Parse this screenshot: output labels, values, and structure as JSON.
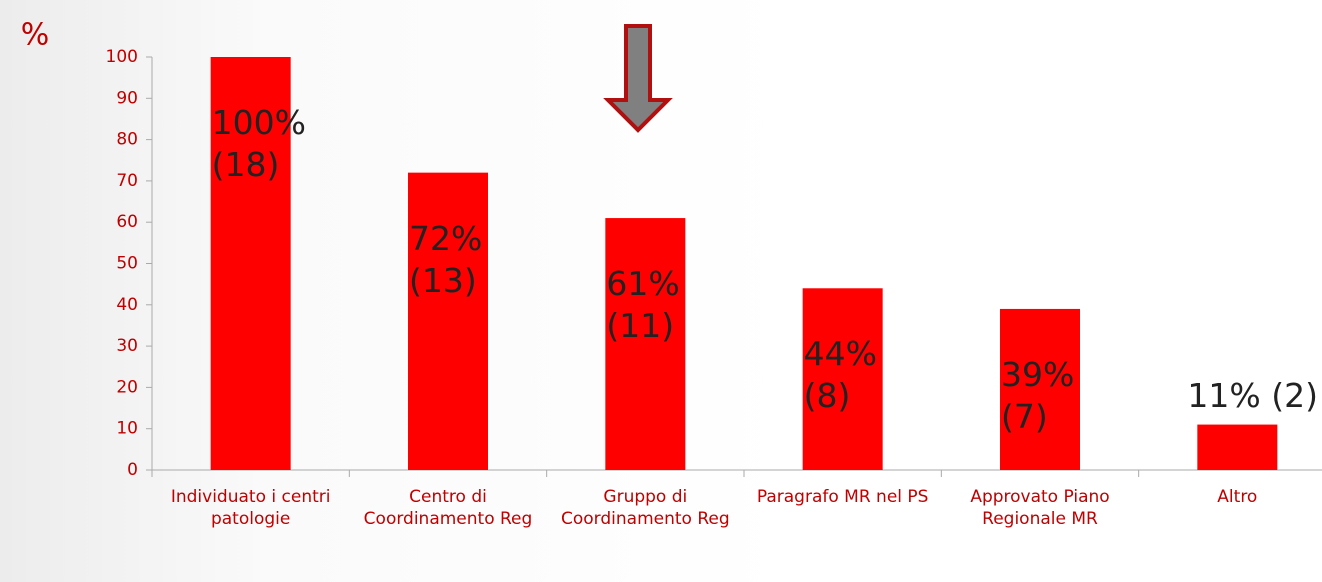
{
  "chart_data": {
    "type": "bar",
    "title": "%",
    "categories": [
      "Individuato i centri patologie",
      "Centro di Coordinamento Reg",
      "Gruppo di Coordinamento Reg",
      "Paragrafo MR nel PS",
      "Approvato Piano Regionale MR",
      "Altro"
    ],
    "values": [
      100,
      72,
      61,
      44,
      39,
      11
    ],
    "value_labels": [
      "100% (18)",
      "72% (13)",
      "61% (11)",
      "44% (8)",
      "39% (7)",
      "11% (2)"
    ],
    "color": "#ff0000",
    "ylim": [
      0,
      100
    ],
    "yticks": [
      0,
      10,
      20,
      30,
      40,
      50,
      60,
      70,
      80,
      90,
      100
    ],
    "grid": false
  }
}
